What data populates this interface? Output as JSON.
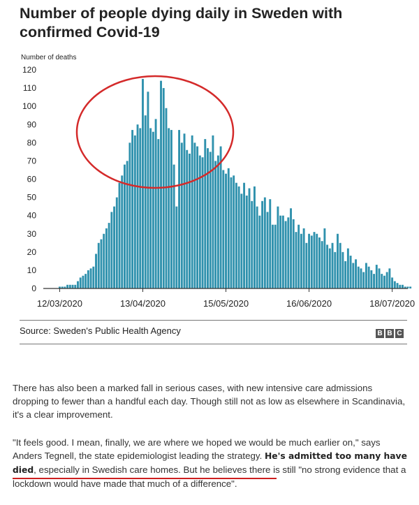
{
  "title": "Number of people dying daily in Sweden with confirmed Covid-19",
  "source": "Source: Sweden's Public Health Agency",
  "logo": [
    "B",
    "B",
    "C"
  ],
  "colors": {
    "bar": "#2f91ad",
    "circle": "#d42a2a",
    "underline": "#cc1f1f",
    "axis": "#333333"
  },
  "chart_data": {
    "type": "bar",
    "title": "Number of people dying daily in Sweden with confirmed Covid-19",
    "ylabel": "Number of deaths",
    "xlabel": "",
    "ylim": [
      0,
      120
    ],
    "yticks": [
      0,
      10,
      20,
      30,
      40,
      50,
      60,
      70,
      80,
      90,
      100,
      110,
      120
    ],
    "xtick_labels": [
      "12/03/2020",
      "13/04/2020",
      "15/05/2020",
      "16/06/2020",
      "18/07/2020"
    ],
    "xtick_day_index": [
      0,
      32,
      64,
      96,
      128
    ],
    "start_date": "12/03/2020",
    "annotation": "red circle highlighting peak around 13/04/2020",
    "values": [
      1,
      1,
      1,
      2,
      2,
      2,
      2,
      4,
      6,
      7,
      8,
      10,
      11,
      12,
      19,
      25,
      27,
      30,
      33,
      36,
      42,
      45,
      50,
      58,
      62,
      68,
      70,
      80,
      87,
      84,
      90,
      88,
      115,
      95,
      108,
      88,
      86,
      93,
      82,
      114,
      110,
      99,
      88,
      87,
      68,
      45,
      87,
      80,
      85,
      76,
      74,
      84,
      80,
      78,
      73,
      72,
      82,
      77,
      75,
      84,
      70,
      73,
      78,
      65,
      63,
      66,
      61,
      62,
      58,
      56,
      52,
      58,
      51,
      55,
      48,
      56,
      45,
      40,
      48,
      50,
      42,
      49,
      35,
      35,
      45,
      40,
      40,
      37,
      39,
      44,
      38,
      31,
      35,
      30,
      33,
      25,
      30,
      29,
      31,
      30,
      28,
      26,
      33,
      24,
      22,
      25,
      20,
      30,
      25,
      20,
      15,
      22,
      18,
      14,
      16,
      12,
      11,
      9,
      14,
      12,
      10,
      8,
      13,
      11,
      8,
      7,
      9,
      11,
      6,
      4,
      3,
      2,
      2,
      1,
      1,
      1
    ]
  },
  "paragraphs": {
    "p1": "There has also been a marked fall in serious cases, with new intensive care admissions dropping to fewer than a handful each day. Though still not as low as elsewhere in Scandinavia, it's a clear improvement.",
    "p2_start": "\"It feels good. I mean, finally, we are where we hoped we would be much earlier on,\" says Anders Tegnell, the state epidemiologist leading the strategy.",
    "p2_bold": "He's admitted too many have died",
    "p2_mid": ", especially in Swedish care homes.",
    "p2_end": " But he believes there is still \"no strong evidence that a lockdown would have made that much of a difference\"."
  }
}
